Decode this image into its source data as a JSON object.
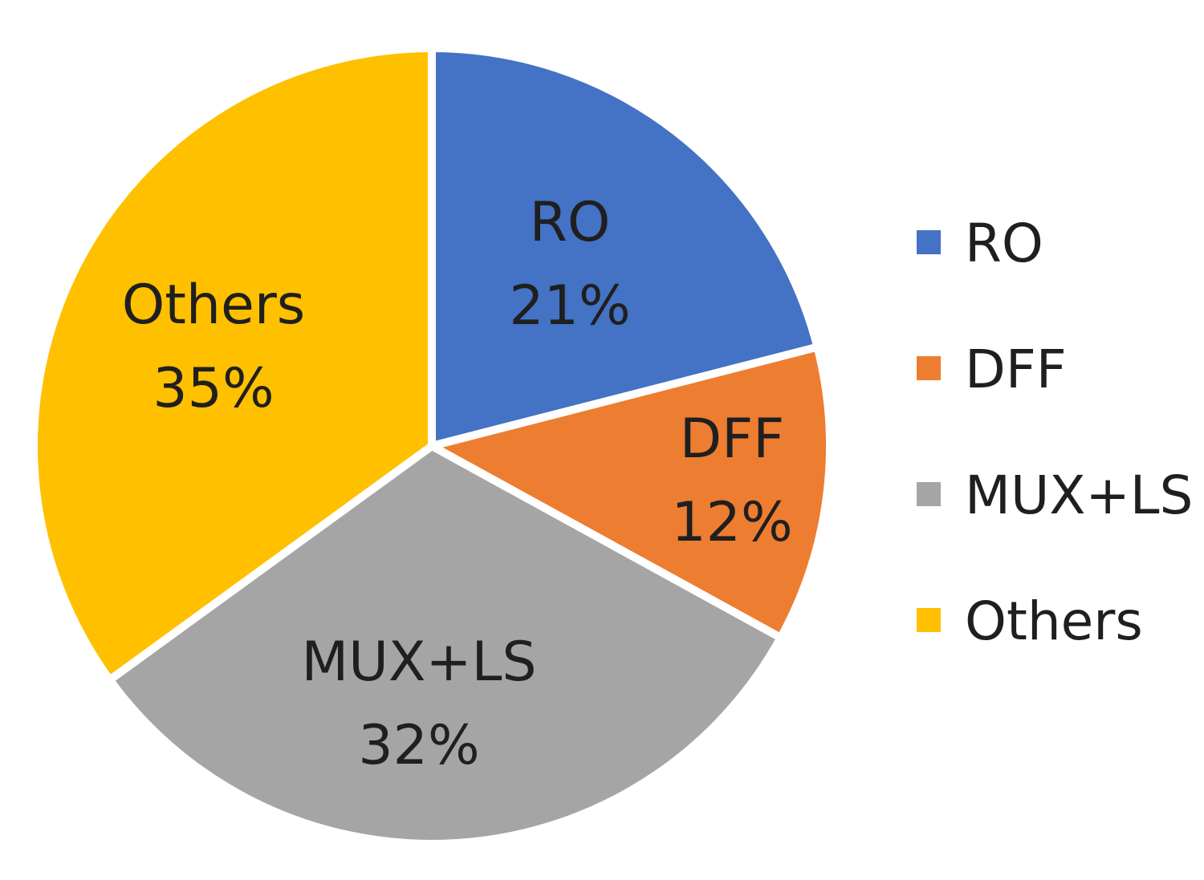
{
  "chart_data": {
    "type": "pie",
    "start_angle_deg": 0,
    "direction": "clockwise",
    "legend_position": "right",
    "slices": [
      {
        "label": "RO",
        "value": 21,
        "value_label": "21%",
        "color": "#4472C4"
      },
      {
        "label": "DFF",
        "value": 12,
        "value_label": "12%",
        "color": "#ED7D31"
      },
      {
        "label": "MUX+LS",
        "value": 32,
        "value_label": "32%",
        "color": "#A5A5A5"
      },
      {
        "label": "Others",
        "value": 35,
        "value_label": "35%",
        "color": "#FFC000"
      }
    ]
  }
}
